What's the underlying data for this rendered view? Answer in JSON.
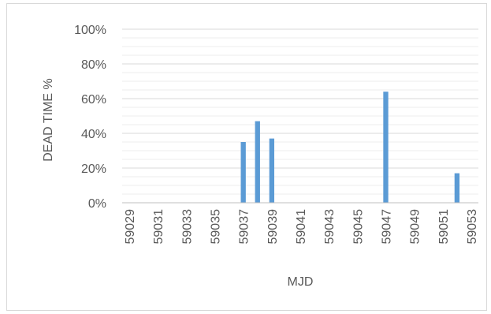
{
  "chart_data": {
    "type": "bar",
    "title": "",
    "xlabel": "MJD",
    "ylabel": "DEAD TIME %",
    "x_tick_labels": [
      "59029",
      "59031",
      "59033",
      "59035",
      "59037",
      "59039",
      "59041",
      "59043",
      "59045",
      "59047",
      "59049",
      "59051",
      "59053"
    ],
    "y_tick_labels": [
      "0%",
      "20%",
      "40%",
      "60%",
      "80%",
      "100%"
    ],
    "xlim": [
      59029,
      59053
    ],
    "ylim": [
      0,
      100
    ],
    "y_major_step": 20,
    "y_minor_step": 5,
    "grid": true,
    "bar_color": "#5b9bd5",
    "x": [
      59037,
      59038,
      59039,
      59047,
      59052
    ],
    "values": [
      35,
      47,
      37,
      64,
      17
    ]
  }
}
